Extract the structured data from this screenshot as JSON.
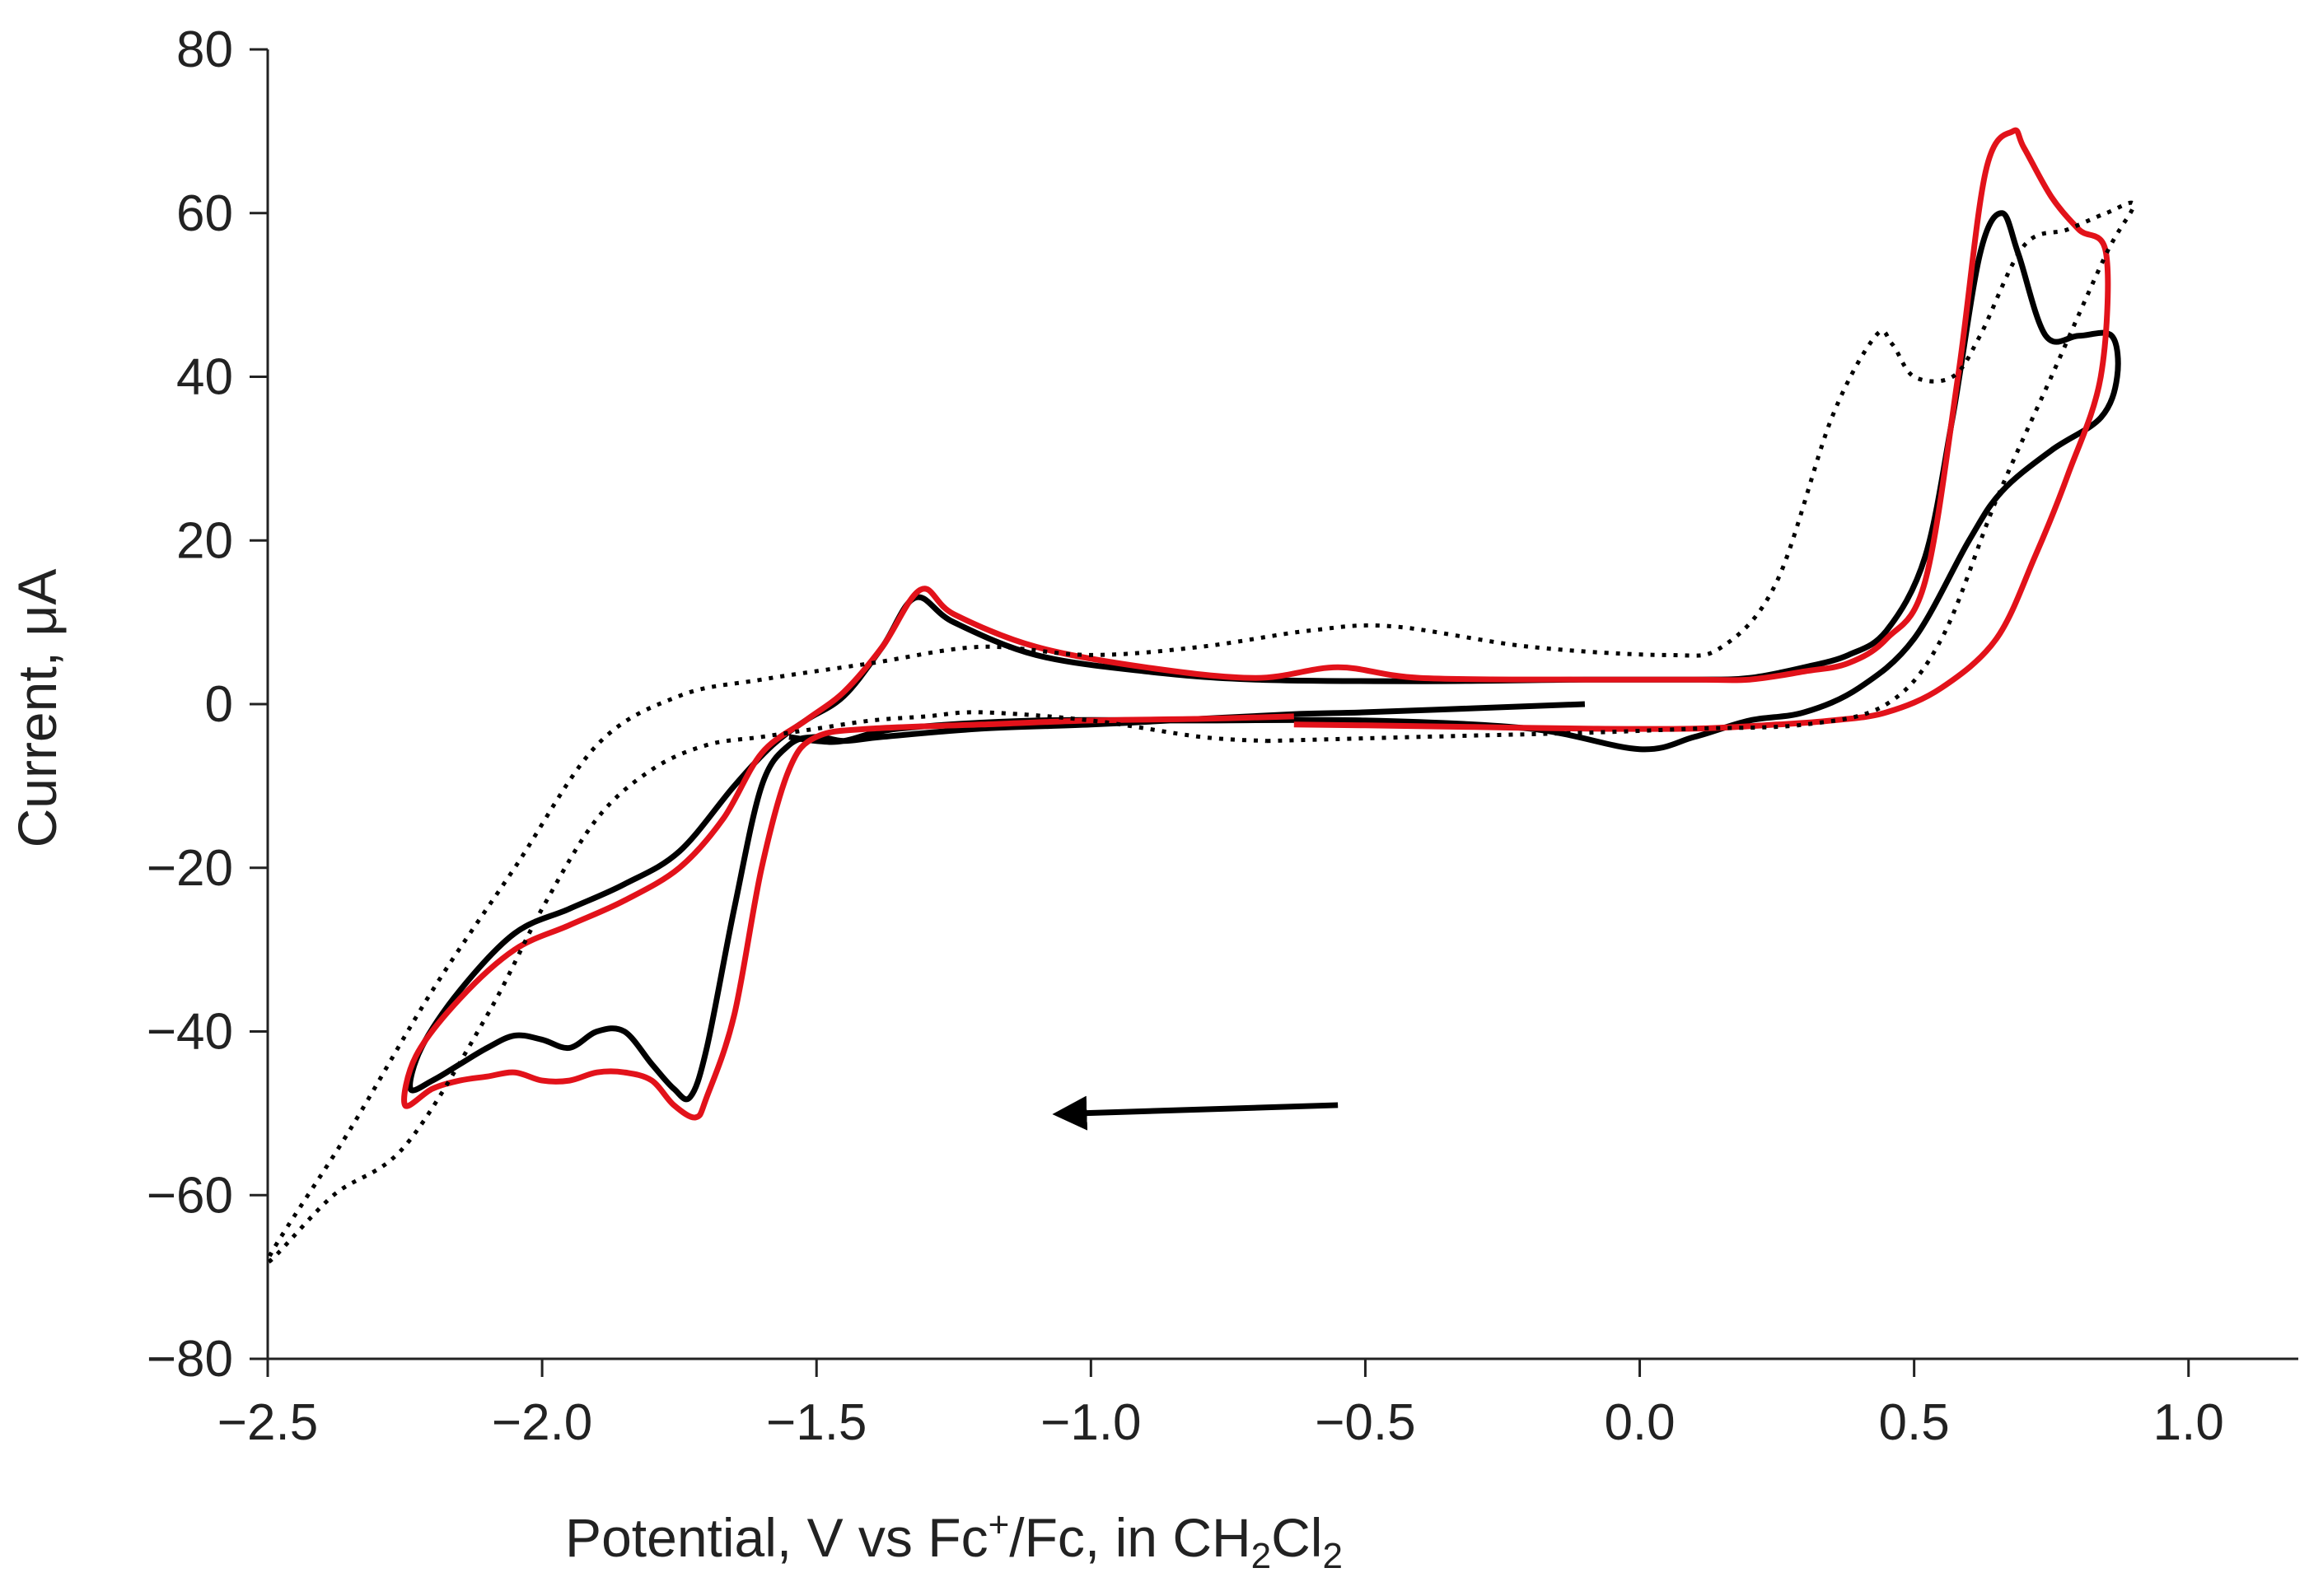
{
  "chart_data": {
    "type": "line",
    "title": "",
    "xlabel": {
      "text": "Potential, V vs Fc",
      "sup": "+",
      "mid": "/Fc, in CH",
      "sub1": "2",
      "cl": "Cl",
      "sub2": "2"
    },
    "ylabel": "Current, μA",
    "xlim": [
      -2.5,
      1.2
    ],
    "ylim": [
      -80,
      80
    ],
    "x_ticks": [
      -2.5,
      -2.0,
      -1.5,
      -1.0,
      -0.5,
      0.0,
      0.5,
      1.0
    ],
    "x_tick_labels": [
      "−2.5",
      "−2.0",
      "−1.5",
      "−1.0",
      "−0.5",
      "0.0",
      "0.5",
      "1.0"
    ],
    "y_ticks": [
      80,
      60,
      40,
      20,
      0,
      -20,
      -40,
      -60,
      -80
    ],
    "y_tick_labels": [
      "80",
      "60",
      "40",
      "20",
      "0",
      "−20",
      "−40",
      "−60",
      "−80"
    ],
    "grid": false,
    "legend": null,
    "annotations": [
      {
        "type": "arrow",
        "label": "scan-direction",
        "from": [
          -0.55,
          -49
        ],
        "to": [
          -1.05,
          -50
        ]
      }
    ],
    "series": [
      {
        "name": "black-solid",
        "color": "#000000",
        "style": "solid",
        "x": [
          -0.1,
          -0.3,
          -0.5,
          -0.62,
          -0.8,
          -1.0,
          -1.2,
          -1.38,
          -1.45,
          -1.5,
          -1.55,
          -1.6,
          -1.65,
          -1.7,
          -1.73,
          -1.76,
          -1.8,
          -1.85,
          -1.9,
          -1.95,
          -2.0,
          -2.05,
          -2.1,
          -2.15,
          -2.2,
          -2.24,
          -2.22,
          -2.15,
          -2.05,
          -1.95,
          -1.85,
          -1.75,
          -1.65,
          -1.58,
          -1.52,
          -1.45,
          -1.38,
          -1.32,
          -1.25,
          -1.1,
          -0.9,
          -0.7,
          -0.4,
          -0.1,
          0.1,
          0.2,
          0.3,
          0.38,
          0.45,
          0.52,
          0.57,
          0.62,
          0.66,
          0.69,
          0.74,
          0.8,
          0.86,
          0.87,
          0.84,
          0.75,
          0.66,
          0.6,
          0.5,
          0.4,
          0.3,
          0.2,
          0.1,
          0.0,
          -0.2,
          -0.5,
          -0.8,
          -1.1,
          -1.35,
          -1.45,
          -1.5,
          -1.55
        ],
        "y": [
          0,
          -0.5,
          -1,
          -1.2,
          -1.8,
          -2.5,
          -3,
          -4,
          -4.5,
          -4,
          -5,
          -10,
          -25,
          -42,
          -48,
          -47,
          -44,
          -40,
          -40,
          -42,
          -41,
          -40.5,
          -42,
          -44,
          -46,
          -47,
          -42,
          -35,
          -28,
          -25,
          -22,
          -18,
          -10,
          -5,
          -2,
          1,
          7,
          13,
          10,
          6,
          4,
          3,
          2.8,
          3,
          3,
          3.2,
          4.5,
          6,
          9,
          18,
          35,
          55,
          60,
          55,
          45,
          45,
          45,
          40,
          35,
          31,
          26,
          20,
          8,
          2,
          -1,
          -2,
          -4,
          -5.5,
          -3,
          -2,
          -2,
          -2,
          -3,
          -4.5,
          -4.5,
          -4
        ]
      },
      {
        "name": "red-solid",
        "color": "#e2121a",
        "style": "solid",
        "x": [
          -0.63,
          -0.8,
          -1.0,
          -1.2,
          -1.4,
          -1.5,
          -1.55,
          -1.6,
          -1.65,
          -1.7,
          -1.72,
          -1.76,
          -1.8,
          -1.85,
          -1.9,
          -1.95,
          -2.0,
          -2.05,
          -2.1,
          -2.15,
          -2.2,
          -2.25,
          -2.23,
          -2.15,
          -2.05,
          -1.95,
          -1.85,
          -1.75,
          -1.67,
          -1.6,
          -1.52,
          -1.45,
          -1.38,
          -1.31,
          -1.25,
          -1.1,
          -0.9,
          -0.7,
          -0.55,
          -0.4,
          -0.1,
          0.1,
          0.2,
          0.3,
          0.38,
          0.45,
          0.52,
          0.58,
          0.63,
          0.68,
          0.7,
          0.75,
          0.8,
          0.85,
          0.84,
          0.78,
          0.72,
          0.65,
          0.55,
          0.45,
          0.35,
          0.25,
          0.1,
          -0.1,
          -0.3,
          -0.5,
          -0.63
        ],
        "y": [
          -1.5,
          -1.8,
          -2,
          -2.5,
          -3,
          -4,
          -8,
          -20,
          -38,
          -48,
          -50.5,
          -49,
          -46,
          -45,
          -45,
          -46,
          -46,
          -45,
          -45.5,
          -46,
          -47,
          -49,
          -43,
          -36,
          -30,
          -27,
          -24,
          -20,
          -14,
          -6,
          -2,
          1.5,
          7,
          14,
          11,
          7,
          4.5,
          3.2,
          4.5,
          3.2,
          3,
          3,
          3,
          4,
          5,
          8,
          15,
          40,
          65,
          70,
          68,
          62,
          58,
          55,
          40,
          28,
          18,
          8,
          2,
          -1,
          -2,
          -2.5,
          -3,
          -3,
          -2.8,
          -2.6,
          -2.5
        ]
      },
      {
        "name": "black-dotted",
        "color": "#000000",
        "style": "dotted",
        "x": [
          -0.68,
          -0.4,
          -0.1,
          0.1,
          0.3,
          0.45,
          0.55,
          0.65,
          0.75,
          0.85,
          0.9,
          0.85,
          0.78,
          0.7,
          0.62,
          0.57,
          0.5,
          0.46,
          0.43,
          0.35,
          0.25,
          0.15,
          0.05,
          -0.2,
          -0.45,
          -0.6,
          -0.8,
          -1.0,
          -1.2,
          -1.4,
          -1.6,
          -1.75,
          -1.9,
          -2.05,
          -2.2,
          -2.35,
          -2.5,
          -2.38,
          -2.25,
          -2.1,
          -2.0,
          -1.9,
          -1.8,
          -1.7,
          -1.6,
          -1.5,
          -1.4,
          -1.3,
          -1.2,
          -1.0,
          -0.8,
          -0.68
        ],
        "y": [
          -4.5,
          -4,
          -3.5,
          -3,
          -2.5,
          0,
          8,
          25,
          40,
          55,
          61,
          60,
          58,
          56,
          45,
          40,
          40,
          44,
          45,
          35,
          15,
          7,
          6,
          7,
          9.5,
          9,
          7,
          6,
          7,
          5,
          3,
          1,
          -5,
          -20,
          -35,
          -52,
          -68,
          -60,
          -54,
          -38,
          -25,
          -14,
          -8,
          -5,
          -4,
          -3,
          -2,
          -1.5,
          -1,
          -2,
          -4,
          -4.5
        ]
      }
    ]
  }
}
